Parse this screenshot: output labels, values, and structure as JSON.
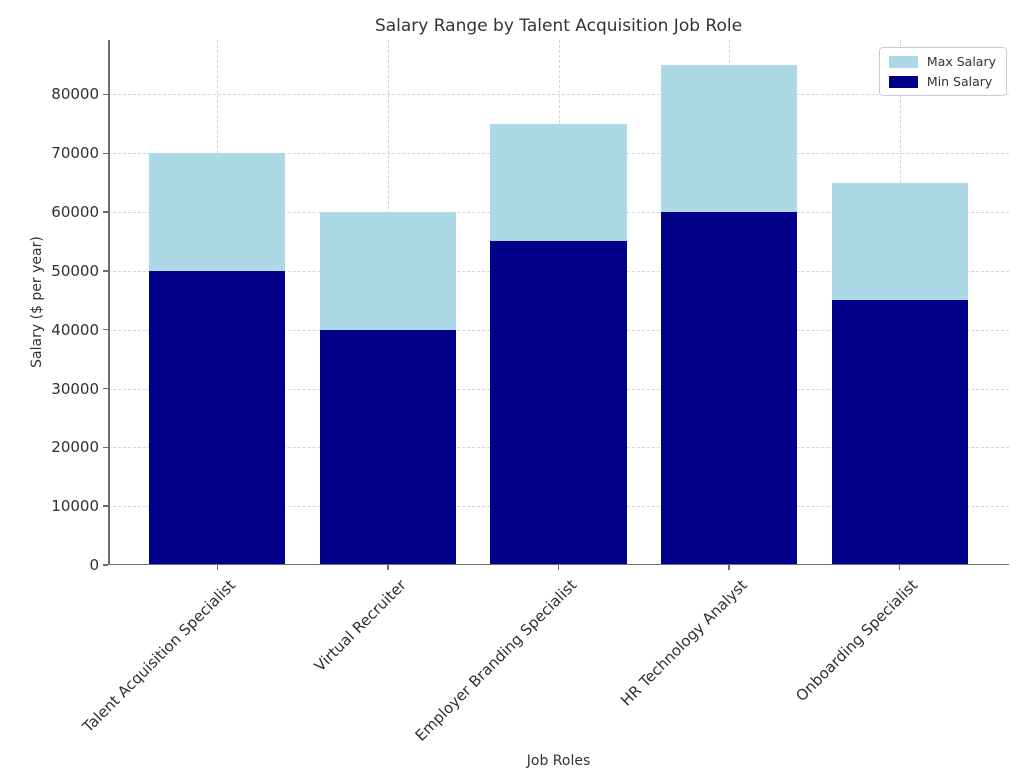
{
  "chart_data": {
    "type": "bar",
    "title": "Salary Range by Talent Acquisition Job Role",
    "xlabel": "Job Roles",
    "ylabel": "Salary ($ per year)",
    "categories": [
      "Talent Acquisition Specialist",
      "Virtual Recruiter",
      "Employer Branding Specialist",
      "HR Technology Analyst",
      "Onboarding Specialist"
    ],
    "series": [
      {
        "name": "Max Salary",
        "color": "#ADD8E6",
        "values": [
          70000,
          60000,
          75000,
          85000,
          65000
        ]
      },
      {
        "name": "Min Salary",
        "color": "#00008B",
        "values": [
          50000,
          40000,
          55000,
          60000,
          45000
        ]
      }
    ],
    "bar_style": "overlaid",
    "yticks": [
      0,
      10000,
      20000,
      30000,
      40000,
      50000,
      60000,
      70000,
      80000
    ],
    "ylim": [
      0,
      89250
    ],
    "grid": "dashed-both-axes",
    "legend_position": "upper-right"
  },
  "style": {
    "grid_color": "#d4d4d4",
    "spine_color": "#6e6e6e",
    "text_color": "#333333"
  }
}
